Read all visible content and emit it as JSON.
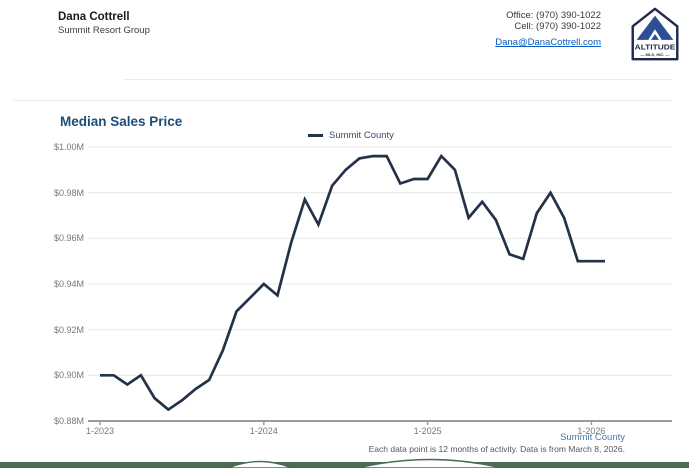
{
  "header": {
    "agent_name": "Dana Cottrell",
    "company": "Summit Resort Group",
    "office": "Office: (970) 390-1022",
    "cell": "Cell: (970) 390-1022",
    "email": "Dana@DanaCottrell.com",
    "logo": {
      "line1": "ALTITUDE",
      "line2": "— MLS, INC. —"
    }
  },
  "chart": {
    "title": "Median Sales Price",
    "legend_label": "Summit County",
    "footer_series_label": "Summit County",
    "footnote": "Each data point is 12 months of activity. Data is from March 8, 2026."
  },
  "colors": {
    "line": "#243247",
    "title": "#1b4e79",
    "footer_blue": "#4779a8",
    "gridline": "#e8e8e8",
    "axis": "#9b9b9b",
    "ridge_green": "#4d6b52",
    "logo_navy": "#1e2a4a",
    "logo_blue": "#2e4d94"
  },
  "chart_data": {
    "type": "line",
    "title": "Median Sales Price",
    "x": [
      "1-2023",
      "2-2023",
      "3-2023",
      "4-2023",
      "5-2023",
      "6-2023",
      "7-2023",
      "8-2023",
      "9-2023",
      "10-2023",
      "11-2023",
      "12-2023",
      "1-2024",
      "2-2024",
      "3-2024",
      "4-2024",
      "5-2024",
      "6-2024",
      "7-2024",
      "8-2024",
      "9-2024",
      "10-2024",
      "11-2024",
      "12-2024",
      "1-2025",
      "2-2025",
      "3-2025",
      "4-2025",
      "5-2025",
      "6-2025",
      "7-2025",
      "8-2025",
      "9-2025",
      "10-2025",
      "11-2025",
      "12-2025",
      "1-2026",
      "2-2026"
    ],
    "series": [
      {
        "name": "Summit County",
        "color": "#243247",
        "values": [
          0.9,
          0.9,
          0.896,
          0.9,
          0.89,
          0.885,
          0.889,
          0.894,
          0.898,
          0.911,
          0.928,
          0.934,
          0.94,
          0.935,
          0.958,
          0.977,
          0.966,
          0.983,
          0.99,
          0.995,
          0.996,
          0.996,
          0.984,
          0.986,
          0.986,
          0.996,
          0.99,
          0.969,
          0.976,
          0.968,
          0.953,
          0.951,
          0.971,
          0.98,
          0.969,
          0.95,
          0.95,
          0.95
        ]
      }
    ],
    "y_unit": "$M",
    "ylim": [
      0.88,
      1.0
    ],
    "y_ticks": [
      "$1.00M",
      "$0.98M",
      "$0.96M",
      "$0.94M",
      "$0.92M",
      "$0.90M",
      "$0.88M"
    ],
    "x_tick_labels": [
      "1-2023",
      "1-2024",
      "1-2025",
      "1-2026"
    ],
    "grid": "horizontal",
    "legend_position": "top-center"
  }
}
